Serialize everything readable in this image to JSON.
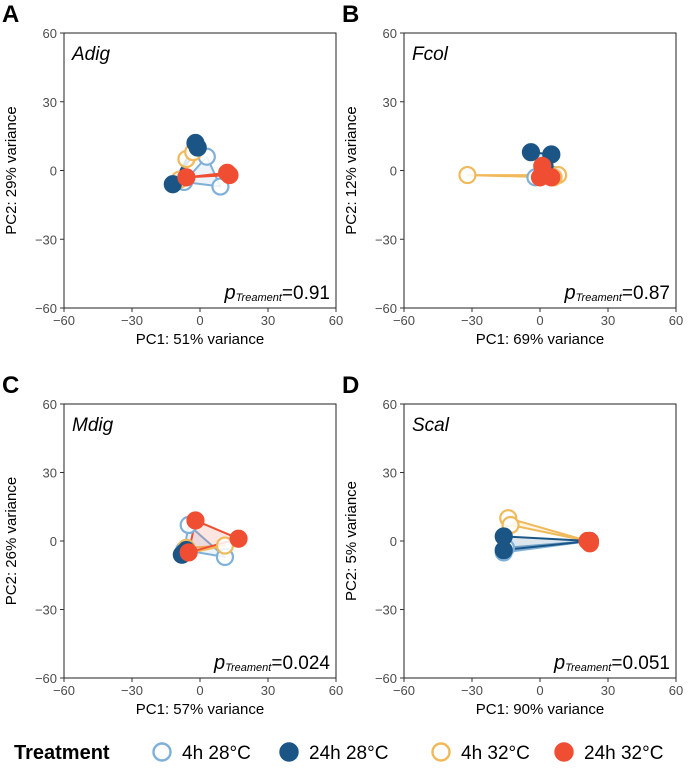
{
  "figure": {
    "legend": {
      "title": "Treatment",
      "placement": "bottom",
      "entries": [
        {
          "key": "4h28",
          "label": "4h 28°C",
          "color": "#7fb0d8",
          "filled": false
        },
        {
          "key": "24h28",
          "label": "24h 28°C",
          "color": "#1a5585",
          "filled": true
        },
        {
          "key": "4h32",
          "label": "4h 32°C",
          "color": "#f0b95a",
          "filled": false
        },
        {
          "key": "24h32",
          "label": "24h 32°C",
          "color": "#f04e33",
          "filled": true
        }
      ]
    }
  },
  "chart_data": [
    {
      "type": "scatter",
      "panel": "A",
      "title": "Adig",
      "xlabel": "PC1: 51% variance",
      "ylabel": "PC2: 29% variance",
      "xlim": [
        -60,
        60
      ],
      "ylim": [
        -60,
        60
      ],
      "xticks": [
        -60,
        -30,
        0,
        30,
        60
      ],
      "yticks": [
        -60,
        -30,
        0,
        30,
        60
      ],
      "annotation": {
        "p": "p",
        "sub": "Treament",
        "value": "=0.91"
      },
      "grid": false,
      "series": [
        {
          "key": "4h28",
          "name": "4h 28°C",
          "points": [
            [
              3,
              6
            ],
            [
              9,
              -7
            ],
            [
              -7,
              -5
            ]
          ]
        },
        {
          "key": "24h28",
          "name": "24h 28°C",
          "points": [
            [
              -2,
              12
            ],
            [
              -12,
              -6
            ],
            [
              -1,
              10
            ]
          ]
        },
        {
          "key": "4h32",
          "name": "4h 32°C",
          "points": [
            [
              -6,
              5
            ],
            [
              -9,
              -4
            ],
            [
              -3,
              8
            ]
          ]
        },
        {
          "key": "24h32",
          "name": "24h 32°C",
          "points": [
            [
              13,
              -2
            ],
            [
              12,
              -1
            ],
            [
              -6,
              -3
            ]
          ]
        }
      ]
    },
    {
      "type": "scatter",
      "panel": "B",
      "title": "Fcol",
      "xlabel": "PC1: 69% variance",
      "ylabel": "PC2: 12% variance",
      "xlim": [
        -60,
        60
      ],
      "ylim": [
        -60,
        60
      ],
      "xticks": [
        -60,
        -30,
        0,
        30,
        60
      ],
      "yticks": [
        -60,
        -30,
        0,
        30,
        60
      ],
      "annotation": {
        "p": "p",
        "sub": "Treament",
        "value": "=0.87"
      },
      "grid": false,
      "series": [
        {
          "key": "4h28",
          "name": "4h 28°C",
          "points": [
            [
              -2,
              -3
            ],
            [
              3,
              -2
            ],
            [
              6,
              -2
            ]
          ]
        },
        {
          "key": "24h28",
          "name": "24h 28°C",
          "points": [
            [
              -4,
              8
            ],
            [
              5,
              7
            ],
            [
              2,
              2
            ]
          ]
        },
        {
          "key": "4h32",
          "name": "4h 32°C",
          "points": [
            [
              -32,
              -2
            ],
            [
              8,
              -2
            ],
            [
              6,
              -3
            ]
          ]
        },
        {
          "key": "24h32",
          "name": "24h 32°C",
          "points": [
            [
              0,
              -3
            ],
            [
              1,
              2
            ],
            [
              5,
              -3
            ]
          ]
        }
      ]
    },
    {
      "type": "scatter",
      "panel": "C",
      "title": "Mdig",
      "xlabel": "PC1: 57% variance",
      "ylabel": "PC2: 26% variance",
      "xlim": [
        -60,
        60
      ],
      "ylim": [
        -60,
        60
      ],
      "xticks": [
        -60,
        -30,
        0,
        30,
        60
      ],
      "yticks": [
        -60,
        -30,
        0,
        30,
        60
      ],
      "annotation": {
        "p": "p",
        "sub": "Treament",
        "value": "=0.024"
      },
      "grid": false,
      "series": [
        {
          "key": "4h28",
          "name": "4h 28°C",
          "points": [
            [
              -5,
              7
            ],
            [
              11,
              -7
            ],
            [
              -7,
              -4
            ]
          ]
        },
        {
          "key": "24h28",
          "name": "24h 28°C",
          "points": [
            [
              -7,
              -5
            ],
            [
              -6,
              -4
            ],
            [
              -8,
              -6
            ]
          ]
        },
        {
          "key": "4h32",
          "name": "4h 32°C",
          "points": [
            [
              -8,
              -6
            ],
            [
              -6,
              -3
            ],
            [
              11,
              -2
            ]
          ]
        },
        {
          "key": "24h32",
          "name": "24h 32°C",
          "points": [
            [
              -2,
              9
            ],
            [
              17,
              1
            ],
            [
              -5,
              -5
            ]
          ]
        }
      ]
    },
    {
      "type": "scatter",
      "panel": "D",
      "title": "Scal",
      "xlabel": "PC1: 90% variance",
      "ylabel": "PC2: 5% variance",
      "xlim": [
        -60,
        60
      ],
      "ylim": [
        -60,
        60
      ],
      "xticks": [
        -60,
        -30,
        0,
        30,
        60
      ],
      "yticks": [
        -60,
        -30,
        0,
        30,
        60
      ],
      "annotation": {
        "p": "p",
        "sub": "Treament",
        "value": "=0.051"
      },
      "grid": false,
      "series": [
        {
          "key": "4h28",
          "name": "4h 28°C",
          "points": [
            [
              -16,
              -5
            ],
            [
              -15,
              -3
            ],
            [
              22,
              0
            ]
          ]
        },
        {
          "key": "24h28",
          "name": "24h 28°C",
          "points": [
            [
              -16,
              2
            ],
            [
              -16,
              -4
            ],
            [
              22,
              0
            ]
          ]
        },
        {
          "key": "4h32",
          "name": "4h 32°C",
          "points": [
            [
              -14,
              10
            ],
            [
              -13,
              7
            ],
            [
              21,
              0
            ]
          ]
        },
        {
          "key": "24h32",
          "name": "24h 32°C",
          "points": [
            [
              22,
              0
            ],
            [
              21,
              0
            ],
            [
              22,
              -1
            ]
          ]
        }
      ]
    }
  ]
}
